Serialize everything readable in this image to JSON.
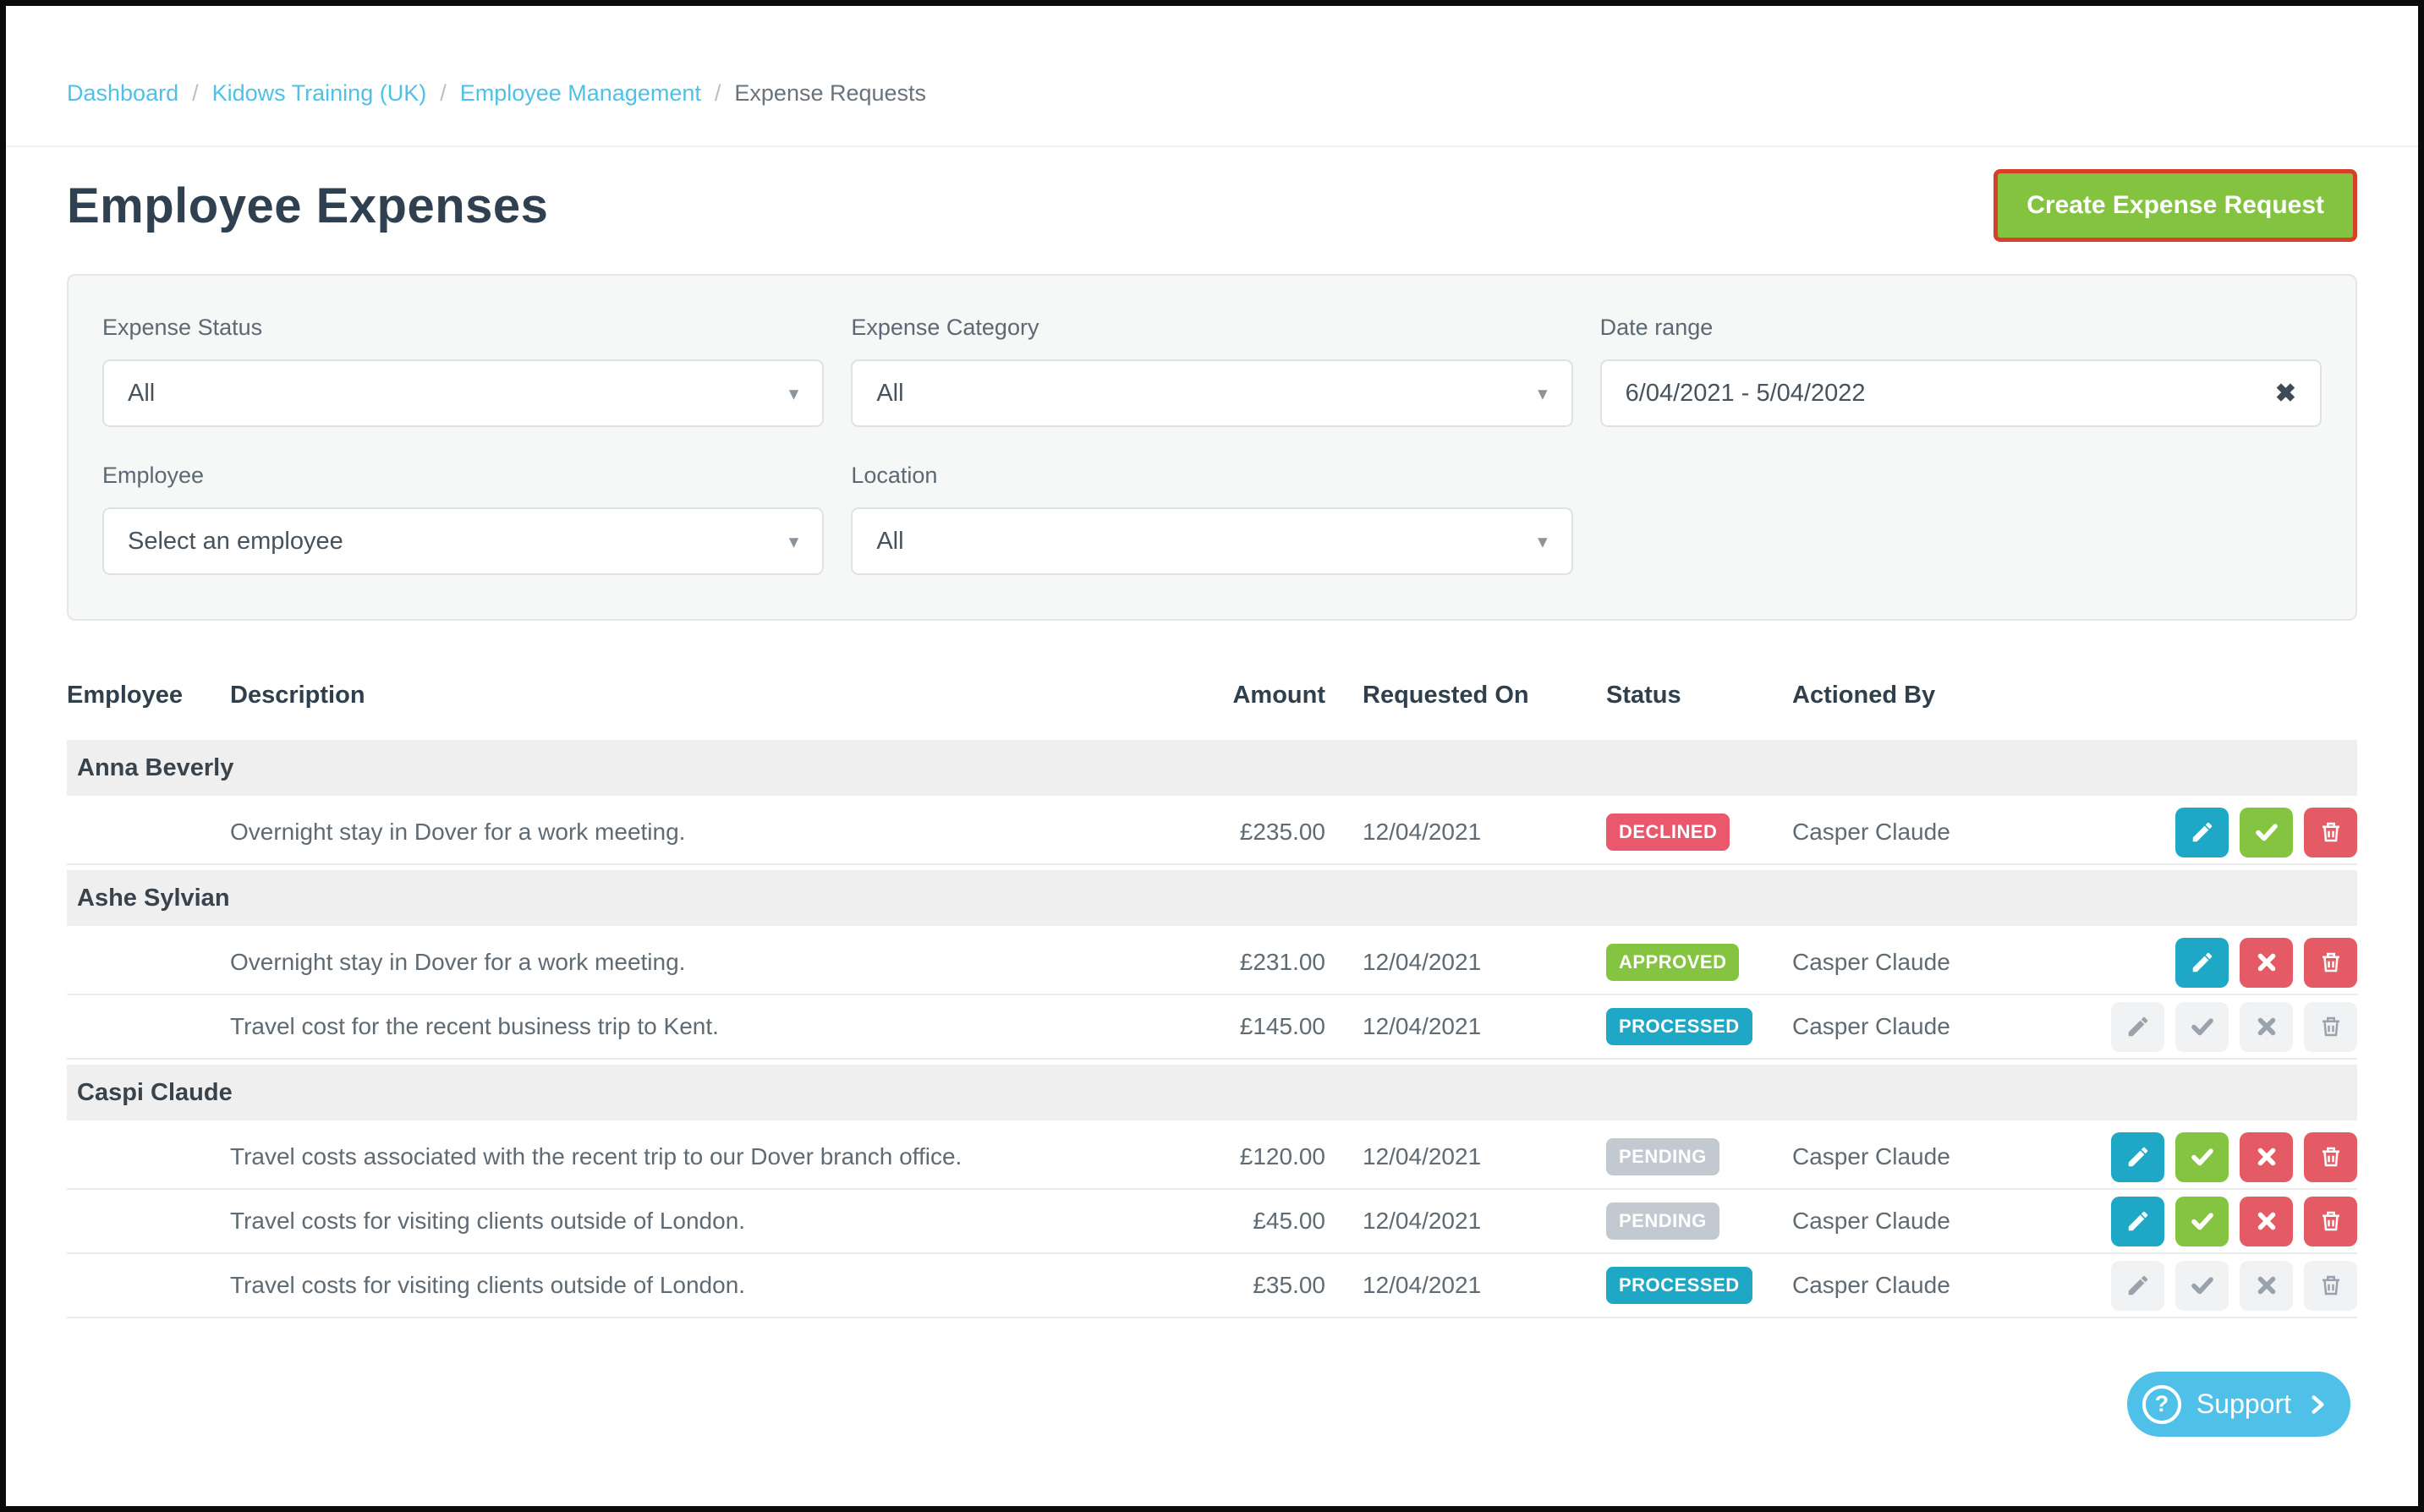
{
  "breadcrumb": {
    "separator": "/",
    "items": [
      {
        "label": "Dashboard",
        "link": true
      },
      {
        "label": "Kidows Training (UK)",
        "link": true
      },
      {
        "label": "Employee Management",
        "link": true
      },
      {
        "label": "Expense Requests",
        "link": false
      }
    ]
  },
  "header": {
    "title": "Employee Expenses",
    "create_button_label": "Create Expense Request"
  },
  "filters": {
    "expense_status": {
      "label": "Expense Status",
      "value": "All"
    },
    "expense_category": {
      "label": "Expense Category",
      "value": "All"
    },
    "date_range": {
      "label": "Date range",
      "value": "6/04/2021 - 5/04/2022",
      "clear_icon": "✖"
    },
    "employee": {
      "label": "Employee",
      "value": "Select an employee"
    },
    "location": {
      "label": "Location",
      "value": "All"
    },
    "dropdown_caret": "▾"
  },
  "table": {
    "columns": [
      "Employee",
      "Description",
      "Amount",
      "Requested On",
      "Status",
      "Actioned By"
    ],
    "groups": [
      {
        "employee": "Anna Beverly",
        "rows": [
          {
            "description": "Overnight stay in Dover for a work meeting.",
            "amount": "£235.00",
            "requested_on": "12/04/2021",
            "status": "DECLINED",
            "actioned_by": "Casper Claude",
            "actions": [
              "edit",
              "approve",
              "delete"
            ],
            "disabled": false
          }
        ]
      },
      {
        "employee": "Ashe Sylvian",
        "rows": [
          {
            "description": "Overnight stay in Dover for a work meeting.",
            "amount": "£231.00",
            "requested_on": "12/04/2021",
            "status": "APPROVED",
            "actioned_by": "Casper Claude",
            "actions": [
              "edit",
              "decline",
              "delete"
            ],
            "disabled": false
          },
          {
            "description": "Travel cost for the recent business trip to Kent.",
            "amount": "£145.00",
            "requested_on": "12/04/2021",
            "status": "PROCESSED",
            "actioned_by": "Casper Claude",
            "actions": [
              "edit",
              "approve",
              "decline",
              "delete"
            ],
            "disabled": true
          }
        ]
      },
      {
        "employee": "Caspi Claude",
        "rows": [
          {
            "description": "Travel costs associated with the recent trip to our Dover branch office.",
            "amount": "£120.00",
            "requested_on": "12/04/2021",
            "status": "PENDING",
            "actioned_by": "Casper Claude",
            "actions": [
              "edit",
              "approve",
              "decline",
              "delete"
            ],
            "disabled": false
          },
          {
            "description": "Travel costs for visiting clients outside of London.",
            "amount": "£45.00",
            "requested_on": "12/04/2021",
            "status": "PENDING",
            "actioned_by": "Casper Claude",
            "actions": [
              "edit",
              "approve",
              "decline",
              "delete"
            ],
            "disabled": false
          },
          {
            "description": "Travel costs for visiting clients outside of London.",
            "amount": "£35.00",
            "requested_on": "12/04/2021",
            "status": "PROCESSED",
            "actioned_by": "Casper Claude",
            "actions": [
              "edit",
              "approve",
              "decline",
              "delete"
            ],
            "disabled": true
          }
        ]
      }
    ]
  },
  "support": {
    "label": "Support",
    "question_mark": "?"
  },
  "colors": {
    "link_blue": "#4fc0e8",
    "title_dark": "#2f4050",
    "create_button_green": "#84c340",
    "highlight_outline_red": "#d6402a",
    "badge_declined": "#e9586c",
    "badge_approved": "#85c441",
    "badge_processed": "#1fa7c6",
    "badge_pending": "#c2c9d1",
    "action_edit_blue": "#1fa7c6",
    "action_approve_green": "#85c441",
    "action_danger_red": "#e45b66",
    "support_blue": "#4fc0e8",
    "group_row_bg": "#efeff0"
  }
}
